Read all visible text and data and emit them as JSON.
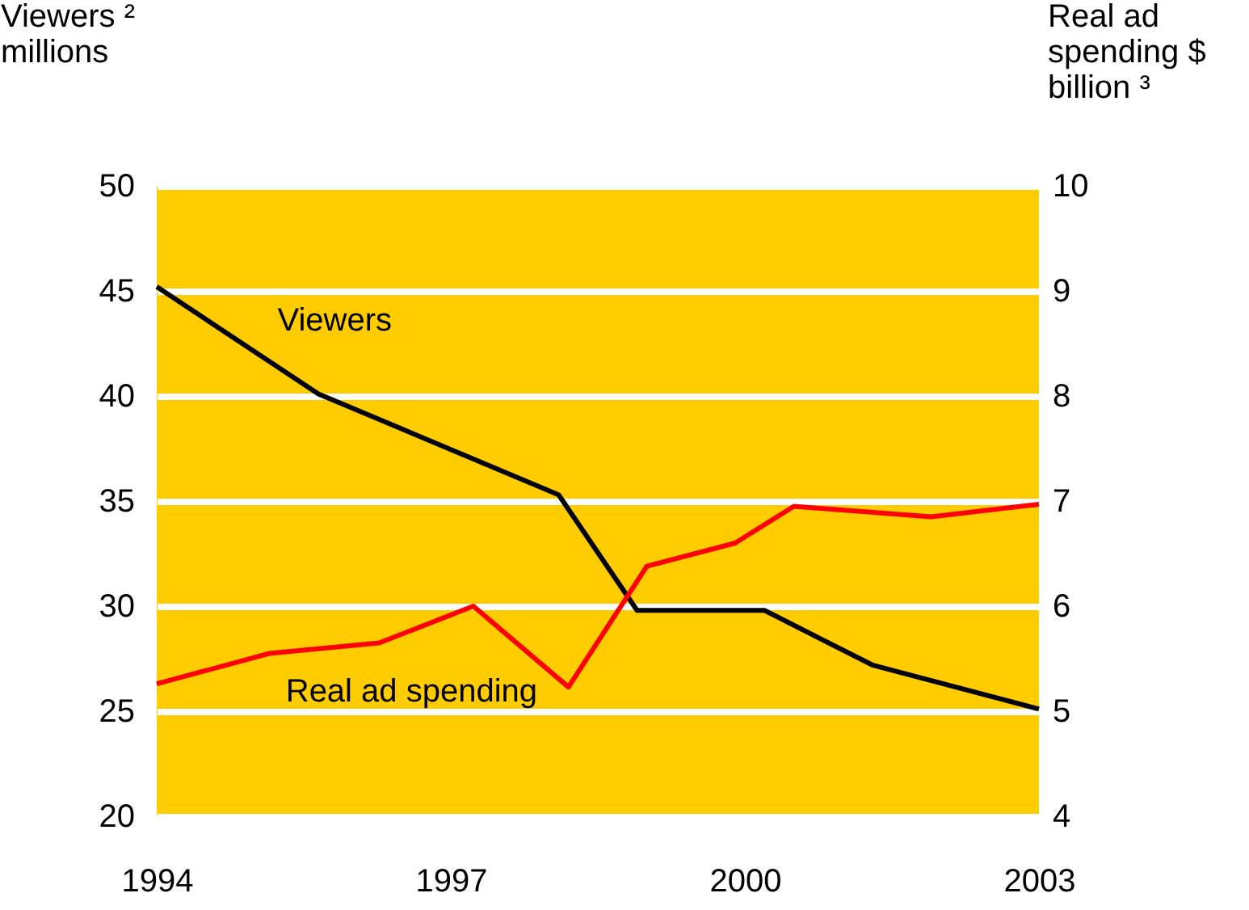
{
  "chart_data": {
    "type": "line",
    "ylabel": "Viewers ²\nmillions",
    "y2label": "Real ad\nspending $\nbillion ³",
    "xlim": [
      1994,
      2003
    ],
    "xticks": [
      1994,
      1997,
      2000,
      2003
    ],
    "ylim": [
      20,
      50
    ],
    "yticks": [
      20,
      25,
      30,
      35,
      40,
      45,
      50
    ],
    "y2lim": [
      4,
      10
    ],
    "y2ticks": [
      4,
      5,
      6,
      7,
      8,
      9,
      10
    ],
    "grid": "y",
    "legend": false,
    "marker": "none",
    "line_style": "solid",
    "series": [
      {
        "name": "Viewers",
        "color": "#000000",
        "x": [
          1994,
          1995.65,
          1998.1,
          1998.9,
          2000.2,
          2001.3,
          2003
        ],
        "values": [
          45.2,
          40.1,
          35.3,
          29.8,
          29.8,
          27.2,
          25.1
        ]
      },
      {
        "name": "Real ad spending",
        "color": "#ff0000",
        "axis": "y2",
        "x": [
          1994,
          1995.15,
          1996.27,
          1997.23,
          1998.2,
          1999.0,
          1999.9,
          2000.5,
          2001.9,
          2003
        ],
        "values": [
          5.26,
          5.55,
          5.65,
          6.0,
          5.23,
          6.38,
          6.6,
          6.95,
          6.85,
          6.97
        ]
      }
    ]
  }
}
